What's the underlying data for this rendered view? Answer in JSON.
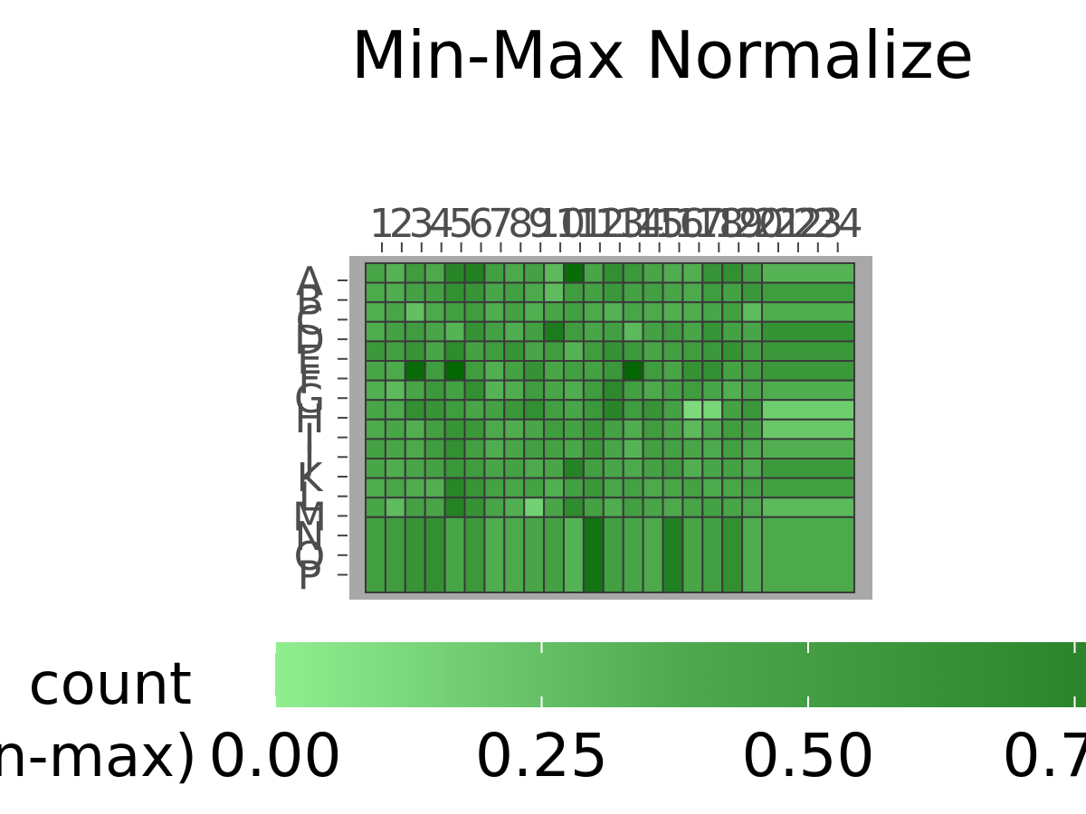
{
  "chart_data": {
    "type": "heatmap",
    "title": "Min-Max Normalize",
    "x_tick_labels": [
      "1",
      "2",
      "3",
      "4",
      "5",
      "6",
      "7",
      "8",
      "9",
      "10",
      "11",
      "12",
      "13",
      "14",
      "15",
      "16",
      "17",
      "18",
      "19",
      "20",
      "21",
      "22",
      "23",
      "24"
    ],
    "y_tick_labels": [
      "A",
      "B",
      "C",
      "D",
      "E",
      "F",
      "G",
      "H",
      "I",
      "J",
      "K",
      "L",
      "M",
      "N",
      "O",
      "P"
    ],
    "colorbar": {
      "label_lines": [
        "count",
        "n-max)"
      ],
      "ticks": [
        "0.00",
        "0.25",
        "0.50",
        "0.7"
      ],
      "tick_values": [
        0,
        0.25,
        0.5,
        0.75
      ],
      "colors": [
        "#90ee90",
        "#2e8b2e",
        "#006400"
      ]
    },
    "columns_visible": 20,
    "rows_visible": 13,
    "values": [
      [
        0.55,
        0.45,
        0.62,
        0.52,
        0.78,
        0.82,
        0.6,
        0.52,
        0.58,
        0.4,
        0.95,
        0.55,
        0.72,
        0.65,
        0.55,
        0.5,
        0.48,
        0.68,
        0.72,
        0.6,
        0.45
      ],
      [
        0.52,
        0.5,
        0.58,
        0.6,
        0.72,
        0.68,
        0.55,
        0.6,
        0.52,
        0.38,
        0.62,
        0.58,
        0.66,
        0.58,
        0.6,
        0.56,
        0.52,
        0.62,
        0.58,
        0.66,
        0.62
      ],
      [
        0.48,
        0.55,
        0.35,
        0.52,
        0.6,
        0.62,
        0.5,
        0.58,
        0.48,
        0.56,
        0.6,
        0.52,
        0.45,
        0.55,
        0.52,
        0.48,
        0.5,
        0.55,
        0.6,
        0.38,
        0.5
      ],
      [
        0.5,
        0.58,
        0.62,
        0.55,
        0.45,
        0.7,
        0.58,
        0.5,
        0.6,
        0.85,
        0.62,
        0.55,
        0.6,
        0.4,
        0.58,
        0.62,
        0.55,
        0.68,
        0.58,
        0.55,
        0.7
      ],
      [
        0.65,
        0.6,
        0.68,
        0.55,
        0.75,
        0.58,
        0.62,
        0.68,
        0.55,
        0.62,
        0.45,
        0.62,
        0.7,
        0.64,
        0.55,
        0.6,
        0.62,
        0.65,
        0.7,
        0.62,
        0.66
      ],
      [
        0.55,
        0.52,
        0.95,
        0.62,
        0.98,
        0.62,
        0.48,
        0.58,
        0.7,
        0.55,
        0.6,
        0.58,
        0.66,
        0.98,
        0.62,
        0.55,
        0.7,
        0.72,
        0.58,
        0.62,
        0.66
      ],
      [
        0.48,
        0.4,
        0.55,
        0.65,
        0.58,
        0.72,
        0.45,
        0.5,
        0.62,
        0.55,
        0.5,
        0.62,
        0.76,
        0.6,
        0.52,
        0.58,
        0.62,
        0.55,
        0.48,
        0.55,
        0.5
      ],
      [
        0.55,
        0.52,
        0.72,
        0.68,
        0.62,
        0.55,
        0.58,
        0.66,
        0.72,
        0.6,
        0.55,
        0.65,
        0.78,
        0.62,
        0.68,
        0.58,
        0.15,
        0.18,
        0.58,
        0.66,
        0.25
      ],
      [
        0.52,
        0.55,
        0.48,
        0.6,
        0.68,
        0.66,
        0.52,
        0.5,
        0.55,
        0.62,
        0.58,
        0.66,
        0.58,
        0.5,
        0.62,
        0.55,
        0.4,
        0.52,
        0.62,
        0.58,
        0.3
      ],
      [
        0.58,
        0.55,
        0.52,
        0.62,
        0.72,
        0.6,
        0.5,
        0.55,
        0.6,
        0.58,
        0.54,
        0.66,
        0.55,
        0.45,
        0.6,
        0.58,
        0.55,
        0.52,
        0.6,
        0.52,
        0.48
      ],
      [
        0.55,
        0.5,
        0.55,
        0.58,
        0.66,
        0.62,
        0.55,
        0.58,
        0.52,
        0.55,
        0.8,
        0.6,
        0.55,
        0.52,
        0.58,
        0.62,
        0.48,
        0.55,
        0.58,
        0.52,
        0.64
      ],
      [
        0.5,
        0.55,
        0.5,
        0.48,
        0.78,
        0.68,
        0.58,
        0.55,
        0.58,
        0.48,
        0.6,
        0.66,
        0.55,
        0.58,
        0.52,
        0.55,
        0.58,
        0.52,
        0.55,
        0.58,
        0.6
      ],
      [
        0.55,
        0.38,
        0.58,
        0.55,
        0.8,
        0.7,
        0.56,
        0.48,
        0.22,
        0.55,
        0.74,
        0.58,
        0.5,
        0.6,
        0.55,
        0.52,
        0.56,
        0.58,
        0.55,
        0.52,
        0.4
      ],
      [
        0.6,
        0.62,
        0.68,
        0.72,
        0.55,
        0.65,
        0.5,
        0.52,
        0.55,
        0.58,
        0.45,
        0.9,
        0.6,
        0.55,
        0.52,
        0.82,
        0.55,
        0.6,
        0.72,
        0.5,
        0.52
      ]
    ]
  }
}
